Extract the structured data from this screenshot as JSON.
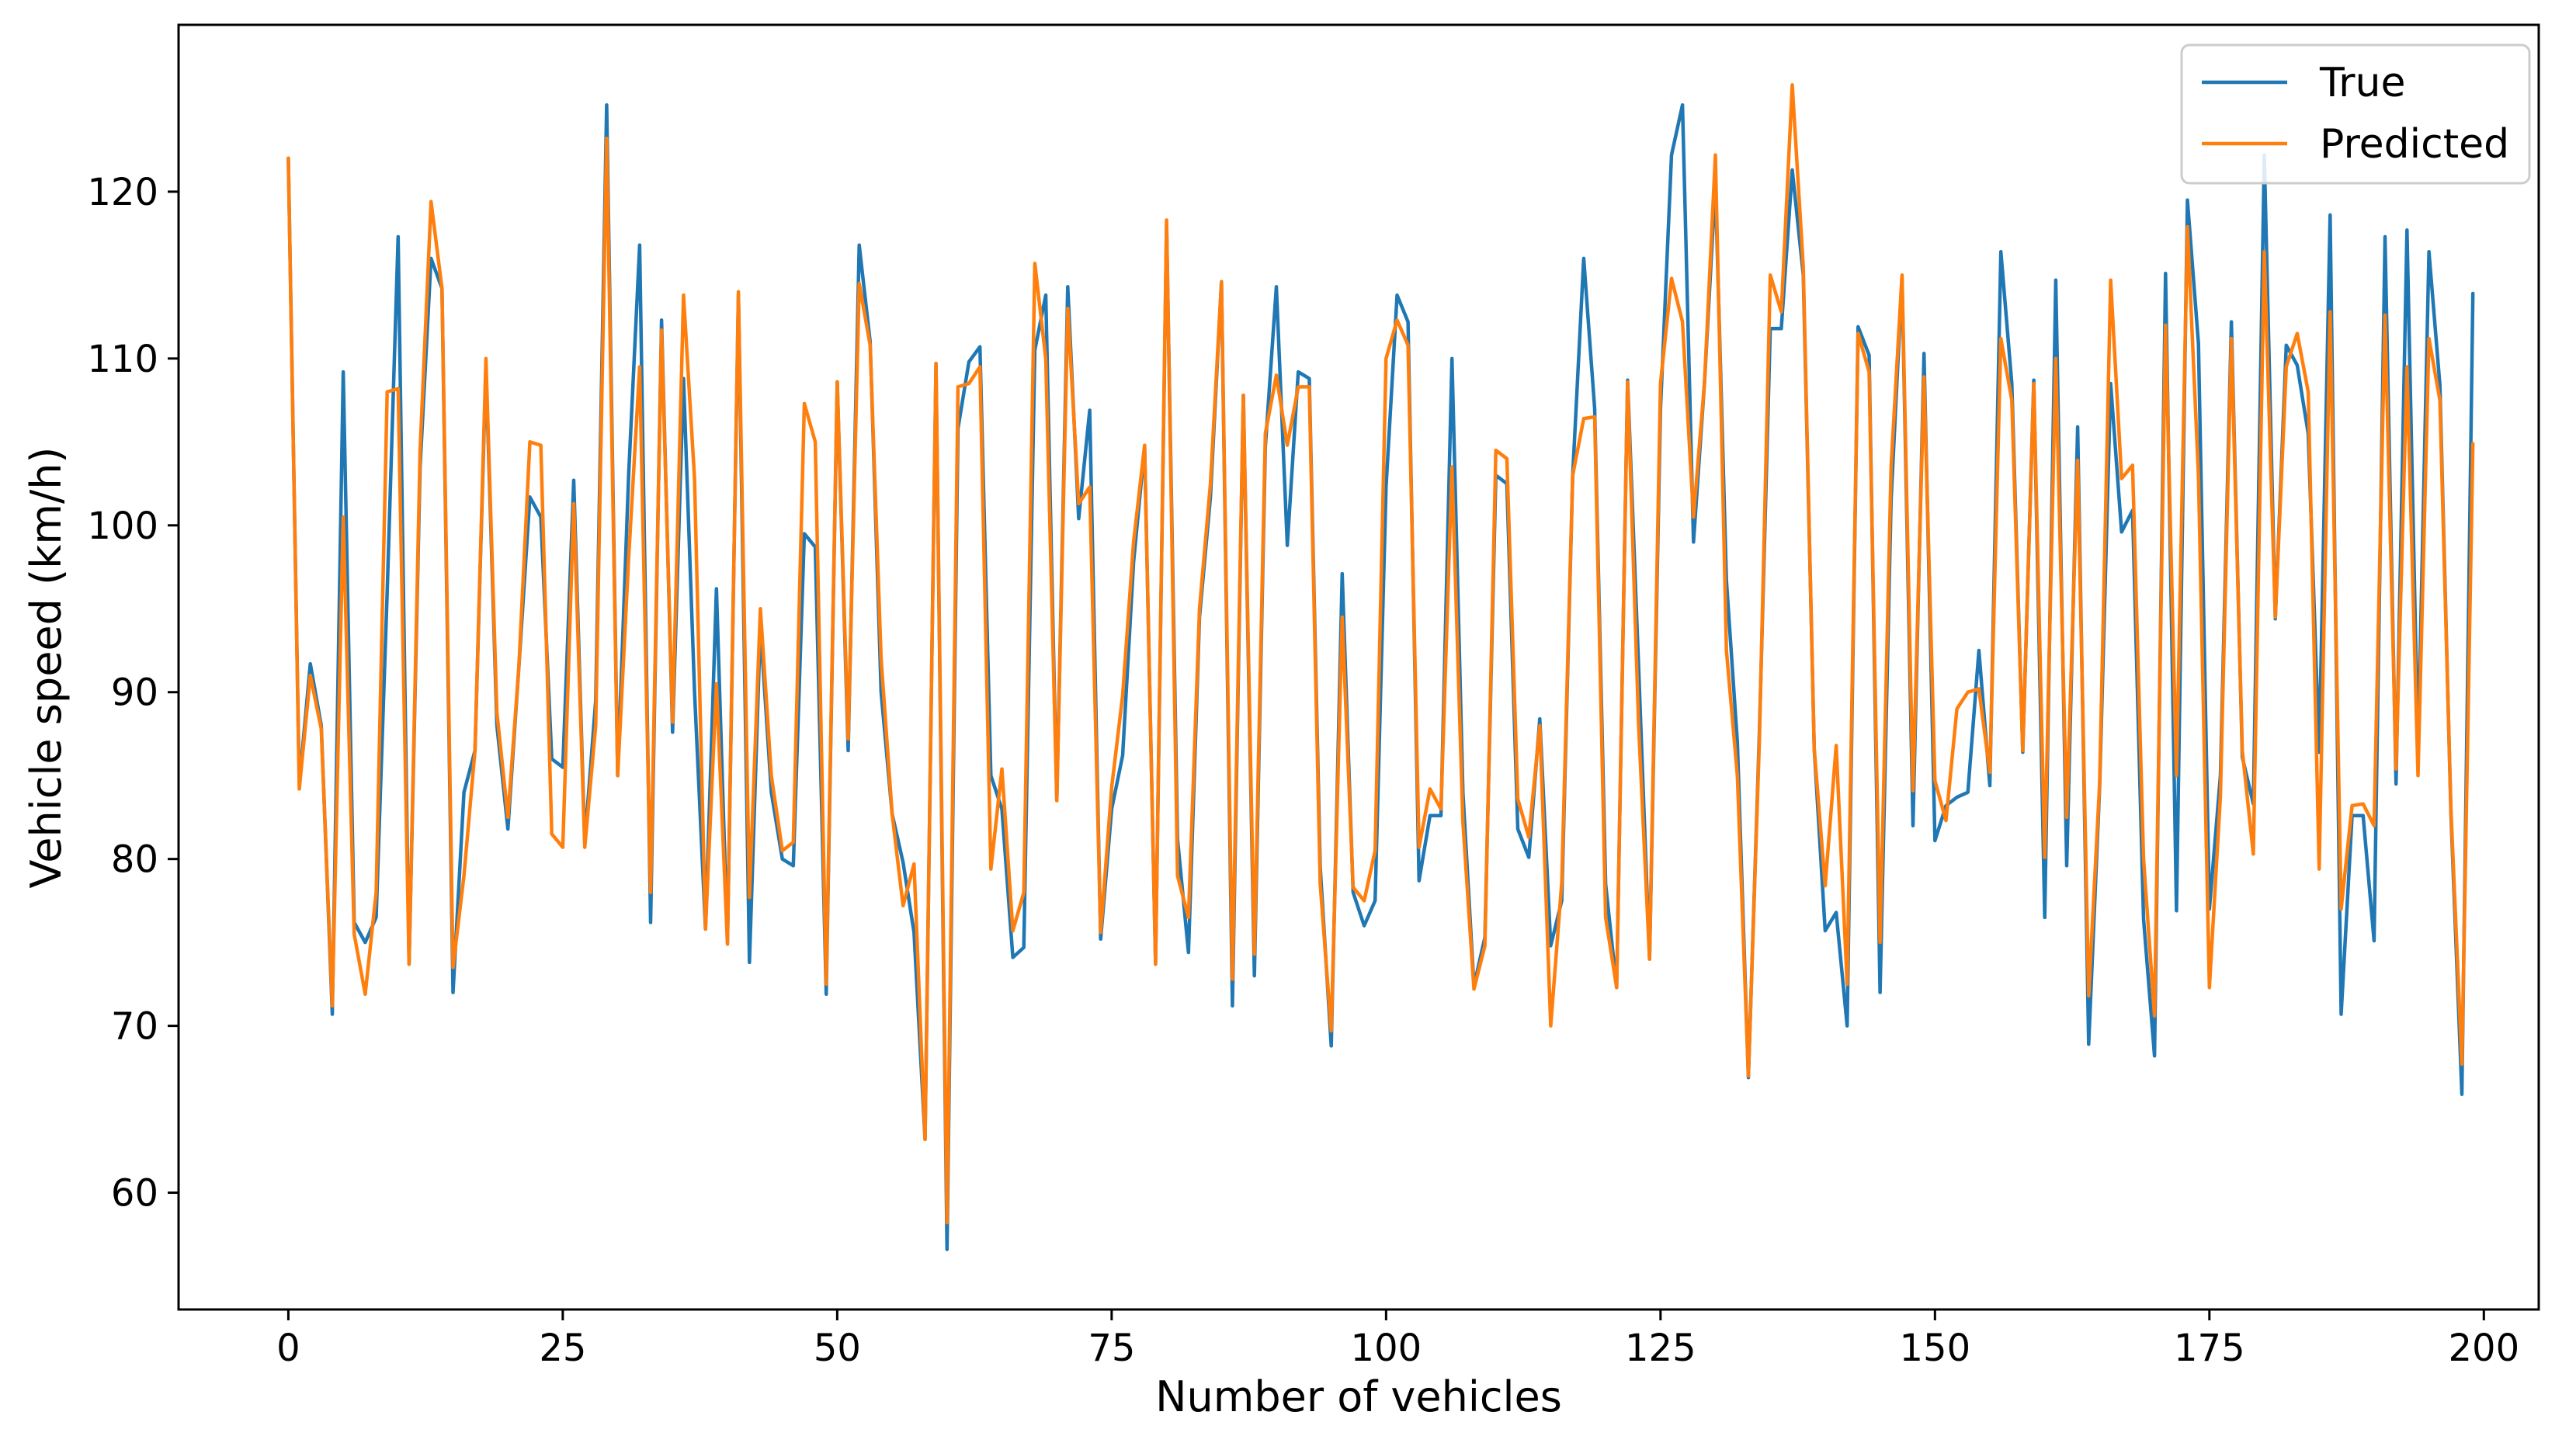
{
  "chart_data": {
    "type": "line",
    "xlabel": "Number of vehicles",
    "ylabel": "Vehicle speed (km/h)",
    "xlim": [
      -10,
      205
    ],
    "ylim": [
      53,
      130
    ],
    "xticks": [
      0,
      25,
      50,
      75,
      100,
      125,
      150,
      175,
      200
    ],
    "yticks": [
      60,
      70,
      80,
      90,
      100,
      110,
      120
    ],
    "grid": false,
    "legend_position": "top-right",
    "series": [
      {
        "name": "True",
        "color": "#1f77b4",
        "values": [
          122,
          84.5,
          91.7,
          88,
          70.7,
          109.2,
          76.2,
          75,
          76.5,
          96,
          117.3,
          73.7,
          103.5,
          116,
          114.2,
          72,
          84,
          86.5,
          109.5,
          88,
          81.8,
          91.5,
          101.7,
          100.5,
          86,
          85.5,
          102.7,
          81,
          89.5,
          125.2,
          85,
          103,
          116.8,
          76.2,
          112.3,
          87.6,
          108.8,
          90,
          75.8,
          96.2,
          75,
          113.8,
          73.8,
          94,
          84,
          80,
          79.6,
          99.5,
          98.7,
          71.9,
          108.6,
          86.5,
          116.8,
          111,
          90,
          82.7,
          79.8,
          75.6,
          63.2,
          109.7,
          56.6,
          105.8,
          109.8,
          110.7,
          85,
          83,
          74.1,
          74.7,
          110.5,
          113.8,
          83.5,
          114.3,
          100.4,
          106.9,
          75.2,
          83,
          86.2,
          97.8,
          104.7,
          73.7,
          118,
          81.2,
          74.4,
          94.5,
          101.7,
          114.6,
          71.2,
          107.8,
          73,
          104.7,
          114.3,
          98.8,
          109.2,
          108.8,
          79.5,
          68.8,
          97.1,
          78,
          76,
          77.5,
          102.3,
          113.8,
          112.2,
          78.7,
          82.6,
          82.6,
          110,
          84,
          72.4,
          75.3,
          103,
          102.5,
          81.8,
          80.1,
          88.4,
          74.8,
          77.5,
          103,
          116,
          107,
          78.5,
          72.3,
          108.7,
          91.5,
          74,
          107,
          122.2,
          125.2,
          99,
          108.5,
          120.5,
          96.7,
          87,
          66.9,
          87.5,
          111.8,
          111.8,
          121.3,
          115,
          86.6,
          75.7,
          76.8,
          70,
          111.9,
          110.2,
          72,
          101.5,
          114.8,
          82,
          110.3,
          81.1,
          83.2,
          83.7,
          84,
          92.5,
          84.4,
          116.4,
          108.5,
          86.4,
          108.7,
          76.5,
          114.7,
          79.6,
          105.9,
          68.9,
          84.3,
          108.5,
          99.6,
          100.9,
          76.4,
          68.2,
          115.1,
          76.9,
          119.5,
          110.9,
          77,
          85,
          112.2,
          86.1,
          83.3,
          122.2,
          94.4,
          110.8,
          109.6,
          105.5,
          86.4,
          118.6,
          70.7,
          82.6,
          82.6,
          75.1,
          117.3,
          84.5,
          117.7,
          86.5,
          116.4,
          108.4,
          82.7,
          65.9,
          113.9
        ]
      },
      {
        "name": "Predicted",
        "color": "#ff7f0e",
        "values": [
          122,
          84.2,
          91,
          87.8,
          71.2,
          100.5,
          75.5,
          71.9,
          78,
          108,
          108.2,
          73.7,
          104.5,
          119.4,
          114.2,
          73.5,
          79,
          86.5,
          110,
          88.8,
          82.5,
          91.5,
          105,
          104.8,
          81.5,
          80.7,
          101.3,
          80.7,
          88,
          123.2,
          85,
          98,
          109.5,
          78,
          111.7,
          88.2,
          113.8,
          102.8,
          75.8,
          90.5,
          74.9,
          114,
          77.7,
          95,
          85,
          80.5,
          81,
          107.3,
          105,
          72.5,
          108.6,
          87.2,
          114.5,
          110.8,
          92,
          82.7,
          77.2,
          79.7,
          63.2,
          109.7,
          58.2,
          108.3,
          108.5,
          109.5,
          79.4,
          85.4,
          75.7,
          78,
          115.7,
          110,
          83.5,
          113,
          101.3,
          102.3,
          75.6,
          84.3,
          89.8,
          99,
          104.8,
          73.7,
          118.3,
          79,
          76.5,
          95,
          102.5,
          114.6,
          72.8,
          107.8,
          74.3,
          105.5,
          109,
          104.8,
          108.3,
          108.3,
          78.5,
          69.7,
          94.5,
          78.3,
          77.5,
          80.5,
          110,
          112.3,
          110.8,
          80.7,
          84.2,
          83,
          103.5,
          82.2,
          72.2,
          74.8,
          104.5,
          104,
          83.6,
          81.3,
          88,
          70,
          78.6,
          103,
          106.4,
          106.5,
          76.5,
          72.3,
          108.6,
          88,
          74,
          108.5,
          114.8,
          112.2,
          100.5,
          108.5,
          122.2,
          92.5,
          85,
          67,
          87,
          115,
          112.8,
          126.4,
          115.5,
          86.6,
          78.4,
          86.8,
          72.5,
          111.5,
          109.2,
          75,
          103.5,
          115,
          84.1,
          108.9,
          84.7,
          82.3,
          89,
          90,
          90.2,
          85.2,
          111.2,
          107.5,
          86.5,
          108.5,
          80.1,
          110,
          82.5,
          103.9,
          71.8,
          84.5,
          114.7,
          102.8,
          103.6,
          80,
          70.6,
          112,
          85,
          117.9,
          103,
          72.3,
          83.8,
          111.2,
          86.5,
          80.3,
          116.4,
          94.5,
          109.5,
          111.5,
          108,
          79.4,
          112.8,
          77,
          83.2,
          83.3,
          82,
          112.6,
          85.4,
          109.5,
          85,
          111.2,
          107.5,
          83,
          67.7,
          104.9
        ]
      }
    ]
  }
}
